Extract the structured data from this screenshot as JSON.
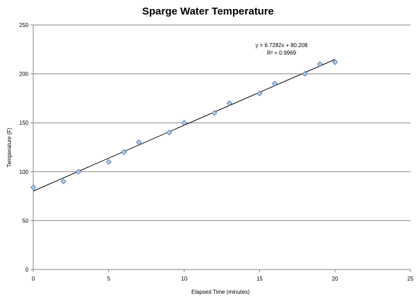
{
  "chart_data": {
    "type": "scatter",
    "title": "Sparge Water Temperature",
    "xlabel": "Elapsed Time (minutes)",
    "ylabel": "Temperature (F)",
    "xlim": [
      0,
      25
    ],
    "ylim": [
      0,
      250
    ],
    "x_ticks": [
      "0",
      "5",
      "10",
      "15",
      "20",
      "25"
    ],
    "y_ticks": [
      "0",
      "50",
      "100",
      "150",
      "200",
      "250"
    ],
    "grid": "horizontal",
    "legend": "none",
    "series": [
      {
        "marker": "diamond",
        "color": "#4f81bd",
        "fill": "#b9cde5",
        "points": [
          [
            0,
            84
          ],
          [
            2,
            90
          ],
          [
            3,
            100
          ],
          [
            5,
            110
          ],
          [
            6,
            120
          ],
          [
            7,
            130
          ],
          [
            9,
            140
          ],
          [
            10,
            150
          ],
          [
            12,
            160
          ],
          [
            13,
            170
          ],
          [
            15,
            180
          ],
          [
            16,
            190
          ],
          [
            18,
            200
          ],
          [
            19,
            210
          ],
          [
            20,
            212
          ]
        ]
      }
    ],
    "trendline": {
      "type": "linear",
      "slope": 6.7282,
      "intercept": 80.208,
      "x_range": [
        0,
        20
      ],
      "equation_label": "y = 6.7282x + 80.208",
      "r2_label": "R² = 0.9969"
    }
  }
}
